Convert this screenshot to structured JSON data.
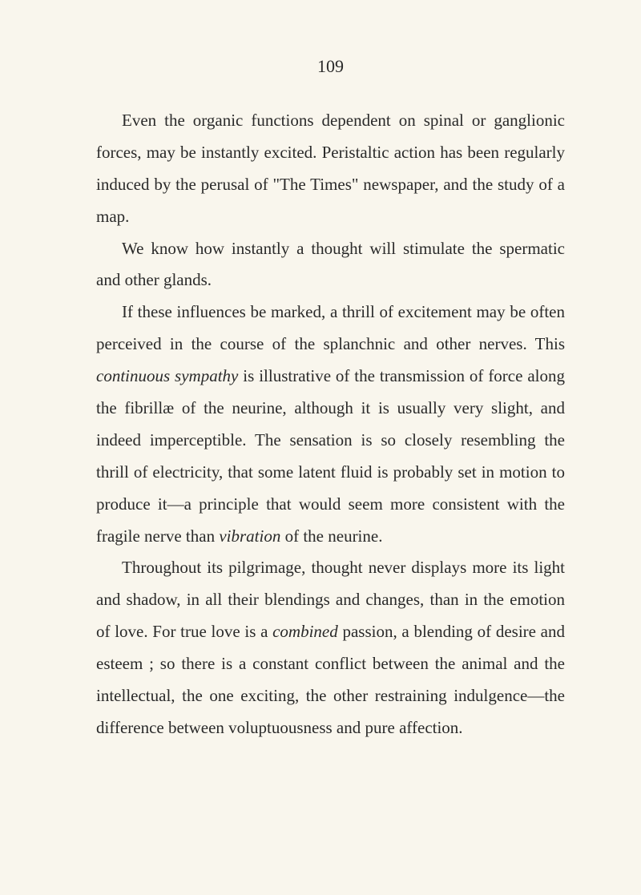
{
  "page_number": "109",
  "paragraphs": [
    {
      "segments": [
        {
          "text": "Even the organic functions dependent on spinal or ganglionic forces, may be instantly excited. Peristaltic action has been regularly induced by the perusal of \"The Times\" newspaper, and the study of a map.",
          "italic": false
        }
      ]
    },
    {
      "segments": [
        {
          "text": "We know how instantly a thought will stimulate the spermatic and other glands.",
          "italic": false
        }
      ]
    },
    {
      "segments": [
        {
          "text": "If these influences be marked, a thrill of excitement may be often perceived in the course of the splanchnic and other nerves. This ",
          "italic": false
        },
        {
          "text": "continuous sympathy",
          "italic": true
        },
        {
          "text": " is illustrative of the transmission of force along the fibrillæ of the neurine, although it is usually very slight, and indeed imperceptible. The sensation is so closely resembling the thrill of electricity, that some latent fluid is probably set in motion to produce it—a principle that would seem more consistent with the fragile nerve than ",
          "italic": false
        },
        {
          "text": "vibration",
          "italic": true
        },
        {
          "text": " of the neurine.",
          "italic": false
        }
      ]
    },
    {
      "segments": [
        {
          "text": "Throughout its pilgrimage, thought never displays more its light and shadow, in all their blendings and changes, than in the emotion of love. For true love is a ",
          "italic": false
        },
        {
          "text": "combined",
          "italic": true
        },
        {
          "text": " passion, a blending of desire and esteem ; so there is a constant conflict between the animal and the intellectual, the one exciting, the other restraining indulgence—the difference between voluptuousness and pure affection.",
          "italic": false
        }
      ]
    }
  ]
}
